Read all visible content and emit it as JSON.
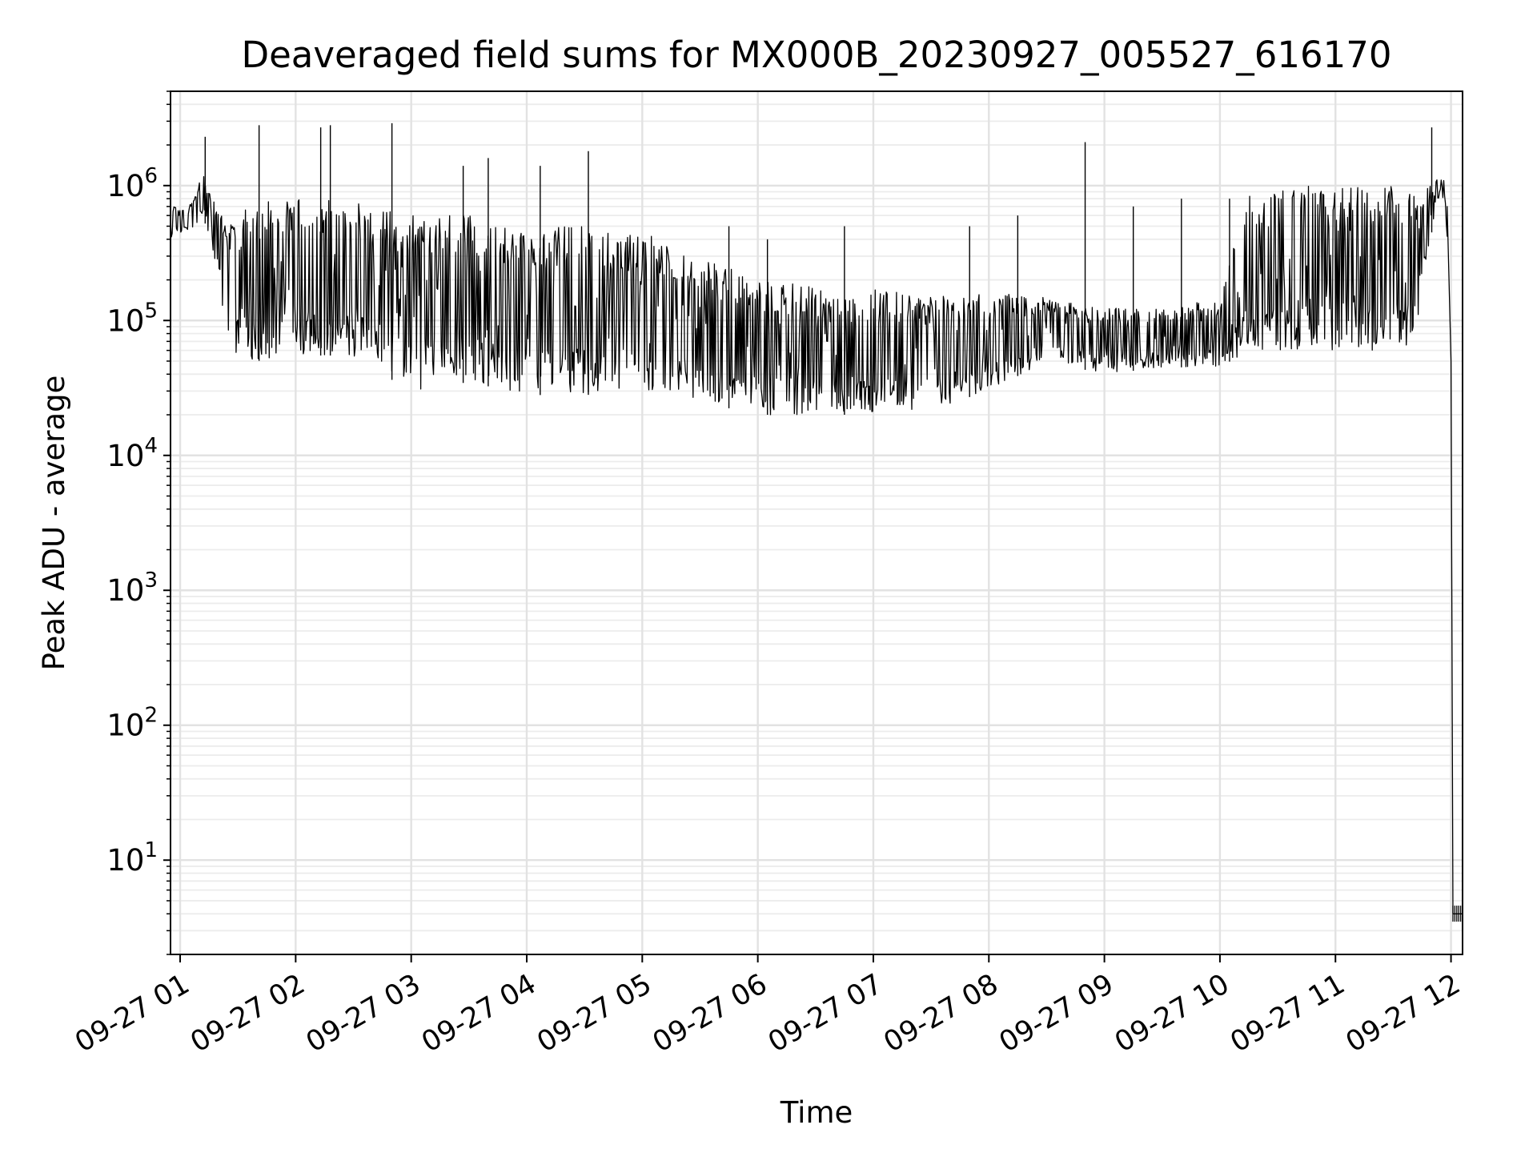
{
  "chart_data": {
    "type": "line",
    "title": "Deaveraged field sums for MX000B_20230927_005527_616170",
    "xlabel": "Time",
    "ylabel": "Peak ADU - average",
    "yscale": "log",
    "ylim": [
      2,
      5000000
    ],
    "xlim": [
      "2023-09-27 00:55",
      "2023-09-27 12:06"
    ],
    "grid": true,
    "x_tick_labels": [
      "09-27 01",
      "09-27 02",
      "09-27 03",
      "09-27 04",
      "09-27 05",
      "09-27 06",
      "09-27 07",
      "09-27 08",
      "09-27 09",
      "09-27 10",
      "09-27 11",
      "09-27 12"
    ],
    "y_tick_labels": [
      {
        "base": "10",
        "exp": "1"
      },
      {
        "base": "10",
        "exp": "2"
      },
      {
        "base": "10",
        "exp": "3"
      },
      {
        "base": "10",
        "exp": "4"
      },
      {
        "base": "10",
        "exp": "5"
      },
      {
        "base": "10",
        "exp": "6"
      }
    ],
    "line_color": "#000000",
    "series": [
      {
        "envelope": [
          {
            "x": "2023-09-27 00:55",
            "low": 400000,
            "high": 700000
          },
          {
            "x": "2023-09-27 01:05",
            "low": 450000,
            "high": 750000
          },
          {
            "x": "2023-09-27 01:12",
            "low": 600000,
            "high": 1200000
          },
          {
            "x": "2023-09-27 01:20",
            "low": 200000,
            "high": 700000
          },
          {
            "x": "2023-09-27 01:25",
            "low": 60000,
            "high": 500000
          },
          {
            "x": "2023-09-27 01:40",
            "low": 50000,
            "high": 800000
          },
          {
            "x": "2023-09-27 02:00",
            "low": 55000,
            "high": 800000
          },
          {
            "x": "2023-09-27 02:30",
            "low": 55000,
            "high": 800000
          },
          {
            "x": "2023-09-27 02:45",
            "low": 40000,
            "high": 650000
          },
          {
            "x": "2023-09-27 03:00",
            "low": 30000,
            "high": 700000
          },
          {
            "x": "2023-09-27 03:30",
            "low": 35000,
            "high": 600000
          },
          {
            "x": "2023-09-27 04:00",
            "low": 28000,
            "high": 500000
          },
          {
            "x": "2023-09-27 04:30",
            "low": 28000,
            "high": 500000
          },
          {
            "x": "2023-09-27 05:00",
            "low": 30000,
            "high": 450000
          },
          {
            "x": "2023-09-27 05:30",
            "low": 25000,
            "high": 300000
          },
          {
            "x": "2023-09-27 06:00",
            "low": 20000,
            "high": 200000
          },
          {
            "x": "2023-09-27 06:30",
            "low": 20000,
            "high": 180000
          },
          {
            "x": "2023-09-27 07:00",
            "low": 20000,
            "high": 170000
          },
          {
            "x": "2023-09-27 07:30",
            "low": 22000,
            "high": 150000
          },
          {
            "x": "2023-09-27 08:00",
            "low": 30000,
            "high": 160000
          },
          {
            "x": "2023-09-27 08:30",
            "low": 50000,
            "high": 150000
          },
          {
            "x": "2023-09-27 09:00",
            "low": 40000,
            "high": 130000
          },
          {
            "x": "2023-09-27 09:30",
            "low": 45000,
            "high": 120000
          },
          {
            "x": "2023-09-27 10:00",
            "low": 45000,
            "high": 150000
          },
          {
            "x": "2023-09-27 10:15",
            "low": 60000,
            "high": 900000
          },
          {
            "x": "2023-09-27 10:45",
            "low": 60000,
            "high": 1000000
          },
          {
            "x": "2023-09-27 11:15",
            "low": 60000,
            "high": 1050000
          },
          {
            "x": "2023-09-27 11:40",
            "low": 60000,
            "high": 1000000
          },
          {
            "x": "2023-09-27 11:50",
            "low": 450000,
            "high": 1000000
          },
          {
            "x": "2023-09-27 11:55",
            "low": 1000000,
            "high": 1500000
          },
          {
            "x": "2023-09-27 11:58",
            "low": 400000,
            "high": 700000
          }
        ],
        "spikes": [
          {
            "x": "2023-09-27 01:13",
            "y": 2300000
          },
          {
            "x": "2023-09-27 01:41",
            "y": 2800000
          },
          {
            "x": "2023-09-27 02:13",
            "y": 2700000
          },
          {
            "x": "2023-09-27 02:18",
            "y": 2800000
          },
          {
            "x": "2023-09-27 02:50",
            "y": 2900000
          },
          {
            "x": "2023-09-27 03:27",
            "y": 1400000
          },
          {
            "x": "2023-09-27 03:40",
            "y": 1600000
          },
          {
            "x": "2023-09-27 04:07",
            "y": 1400000
          },
          {
            "x": "2023-09-27 04:32",
            "y": 1800000
          },
          {
            "x": "2023-09-27 05:45",
            "y": 500000
          },
          {
            "x": "2023-09-27 06:05",
            "y": 400000
          },
          {
            "x": "2023-09-27 06:45",
            "y": 500000
          },
          {
            "x": "2023-09-27 07:50",
            "y": 500000
          },
          {
            "x": "2023-09-27 08:15",
            "y": 600000
          },
          {
            "x": "2023-09-27 08:50",
            "y": 2100000
          },
          {
            "x": "2023-09-27 09:15",
            "y": 700000
          },
          {
            "x": "2023-09-27 09:40",
            "y": 800000
          },
          {
            "x": "2023-09-27 10:05",
            "y": 800000
          },
          {
            "x": "2023-09-27 11:50",
            "y": 2700000
          }
        ],
        "tail": [
          {
            "x": "2023-09-27 11:58",
            "y": 700000
          },
          {
            "x": "2023-09-27 12:00",
            "y": 50000
          },
          {
            "x": "2023-09-27 12:01",
            "y": 4
          },
          {
            "x": "2023-09-27 12:06",
            "y": 4
          }
        ]
      }
    ]
  }
}
